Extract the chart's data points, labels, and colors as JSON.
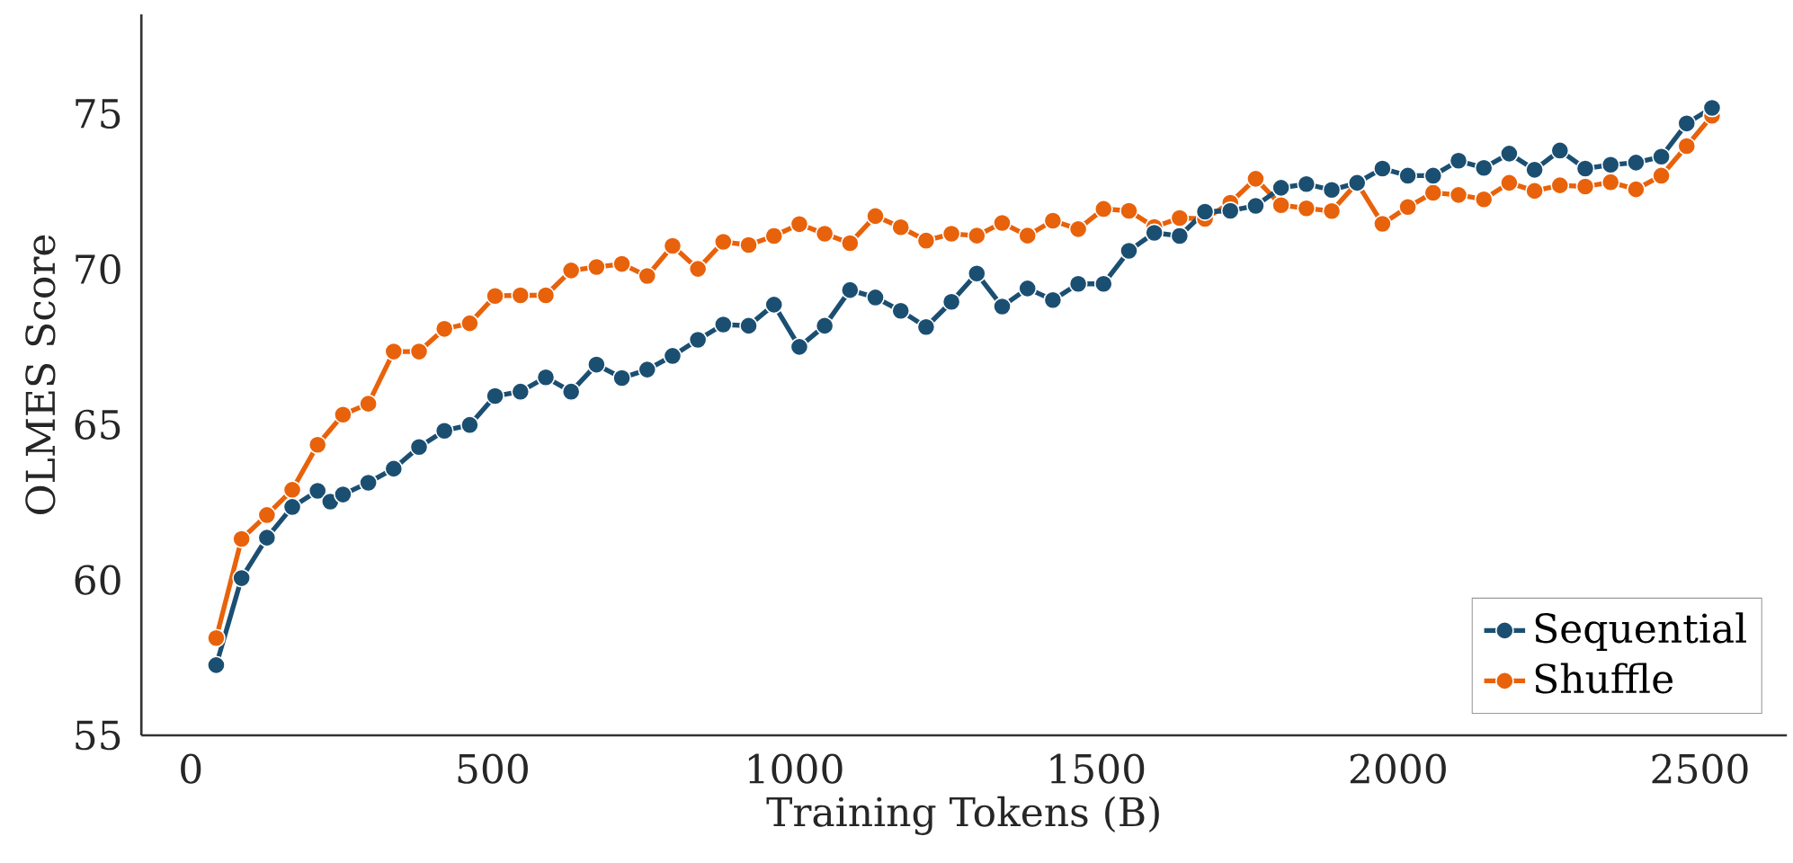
{
  "chart_data": {
    "type": "line",
    "xlabel": "Training Tokens (B)",
    "ylabel": "OLMES Score",
    "xlim": [
      -82,
      2644
    ],
    "ylim": [
      55,
      78.2
    ],
    "xticks": [
      0,
      500,
      1000,
      1500,
      2000,
      2500
    ],
    "yticks": [
      55,
      60,
      65,
      70,
      75
    ],
    "grid": false,
    "legend": "bottom right",
    "marker": "circle",
    "line_style": "solid",
    "series": [
      {
        "name": "Sequential",
        "color": "#1b4f72",
        "x": [
          42,
          84,
          126,
          168,
          210,
          231,
          252,
          294,
          336,
          378,
          420,
          462,
          504,
          546,
          588,
          630,
          672,
          714,
          756,
          798,
          840,
          882,
          924,
          966,
          1008,
          1050,
          1092,
          1134,
          1176,
          1218,
          1260,
          1302,
          1344,
          1386,
          1428,
          1470,
          1512,
          1554,
          1596,
          1638,
          1680,
          1722,
          1764,
          1806,
          1848,
          1890,
          1932,
          1974,
          2016,
          2058,
          2100,
          2142,
          2184,
          2226,
          2268,
          2310,
          2352,
          2394,
          2436,
          2478,
          2520
        ],
        "values": [
          57.26,
          60.06,
          61.36,
          62.35,
          62.87,
          62.52,
          62.75,
          63.13,
          63.58,
          64.28,
          64.8,
          64.99,
          65.92,
          66.06,
          66.52,
          66.06,
          66.93,
          66.5,
          66.77,
          67.21,
          67.73,
          68.22,
          68.18,
          68.86,
          67.5,
          68.18,
          69.33,
          69.09,
          68.66,
          68.14,
          68.95,
          69.86,
          68.8,
          69.38,
          69.01,
          69.53,
          69.53,
          70.59,
          71.17,
          71.07,
          71.85,
          71.88,
          72.04,
          72.62,
          72.74,
          72.55,
          72.78,
          73.24,
          73.01,
          73.01,
          73.49,
          73.26,
          73.72,
          73.2,
          73.82,
          73.24,
          73.36,
          73.43,
          73.62,
          74.69,
          75.19
        ]
      },
      {
        "name": "Shuffle",
        "color": "#e8620b",
        "x": [
          42,
          84,
          126,
          168,
          210,
          252,
          294,
          336,
          378,
          420,
          462,
          504,
          546,
          588,
          630,
          672,
          714,
          756,
          798,
          840,
          882,
          924,
          966,
          1008,
          1050,
          1092,
          1134,
          1176,
          1218,
          1260,
          1302,
          1344,
          1386,
          1428,
          1470,
          1512,
          1554,
          1596,
          1638,
          1680,
          1722,
          1764,
          1806,
          1848,
          1890,
          1932,
          1974,
          2016,
          2058,
          2100,
          2142,
          2184,
          2226,
          2268,
          2310,
          2352,
          2394,
          2436,
          2478,
          2520
        ],
        "values": [
          58.13,
          61.32,
          62.09,
          62.9,
          64.35,
          65.32,
          65.67,
          67.35,
          67.35,
          68.08,
          68.26,
          69.14,
          69.16,
          69.16,
          69.96,
          70.07,
          70.17,
          69.78,
          70.75,
          70.01,
          70.88,
          70.78,
          71.07,
          71.45,
          71.14,
          70.84,
          71.71,
          71.35,
          70.92,
          71.14,
          71.08,
          71.49,
          71.08,
          71.56,
          71.29,
          71.94,
          71.88,
          71.36,
          71.65,
          71.62,
          72.14,
          72.91,
          72.06,
          71.96,
          71.87,
          72.78,
          71.46,
          72.0,
          72.46,
          72.39,
          72.25,
          72.78,
          72.52,
          72.7,
          72.66,
          72.8,
          72.57,
          73.01,
          73.96,
          74.94
        ]
      }
    ]
  }
}
